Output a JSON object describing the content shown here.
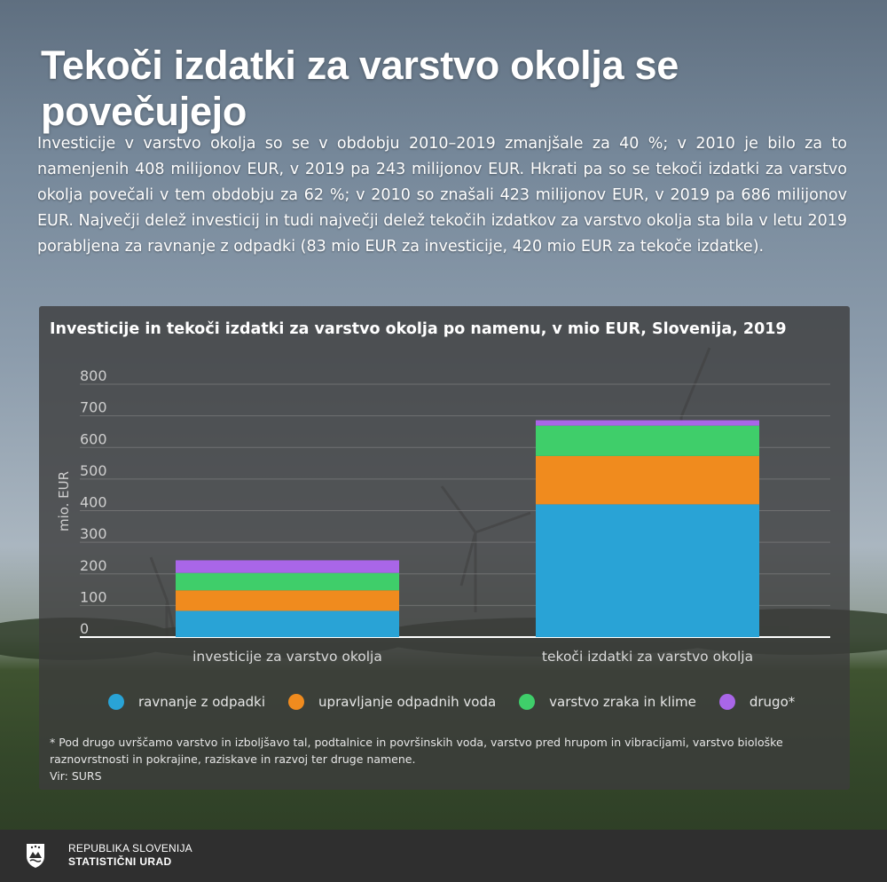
{
  "header": {
    "title": "Tekoči izdatki za varstvo okolja se povečujejo",
    "intro": "Investicije v varstvo okolja so se v obdobju 2010–2019 zmanjšale za 40 %; v 2010 je bilo za to namenjenih 408 milijonov EUR, v 2019 pa 243 milijonov EUR. Hkrati pa so se tekoči izdatki za varstvo okolja povečali v tem obdobju za 62 %; v 2010 so znašali 423 milijonov EUR, v 2019 pa 686 milijonov EUR. Največji delež investicij in tudi največji delež tekočih izdatkov za varstvo okolja sta bila v letu 2019 porabljena za ravnanje z odpadki (83 mio EUR za investicije, 420 mio EUR za tekoče izdatke)."
  },
  "chart_data": {
    "type": "bar",
    "stacked": true,
    "title": "Investicije in tekoči izdatki za varstvo okolja po namenu, v mio EUR, Slovenija, 2019",
    "xlabel": "",
    "ylabel": "mio. EUR",
    "ylim": [
      0,
      800
    ],
    "yticks": [
      0,
      100,
      200,
      300,
      400,
      500,
      600,
      700,
      800
    ],
    "grid": true,
    "legend_position": "bottom",
    "categories": [
      "investicije za varstvo okolja",
      "tekoči izdatki za varstvo okolja"
    ],
    "series": [
      {
        "name": "ravnanje z odpadki",
        "color": "#29a3d6",
        "values": [
          83,
          420
        ]
      },
      {
        "name": "upravljanje odpadnih voda",
        "color": "#f08b1e",
        "values": [
          65,
          153
        ]
      },
      {
        "name": "varstvo zraka in klime",
        "color": "#3fce6a",
        "values": [
          55,
          96
        ]
      },
      {
        "name": "drugo",
        "legend_label": "drugo*",
        "color": "#a966e8",
        "values": [
          40,
          17
        ]
      }
    ]
  },
  "footnote": {
    "text": "* Pod drugo   uvrščamo varstvo in izboljšavo tal, podtalnice in površinskih voda, varstvo pred hrupom in vibracijami, varstvo biološke raznovrstnosti in pokrajine, raziskave in razvoj ter druge namene.",
    "source": "Vir:  SURS"
  },
  "footer": {
    "org_line1": "REPUBLIKA SLOVENIJA",
    "org_line2": "STATISTIČNI URAD",
    "logo_icon": "coat-of-arms-icon"
  }
}
